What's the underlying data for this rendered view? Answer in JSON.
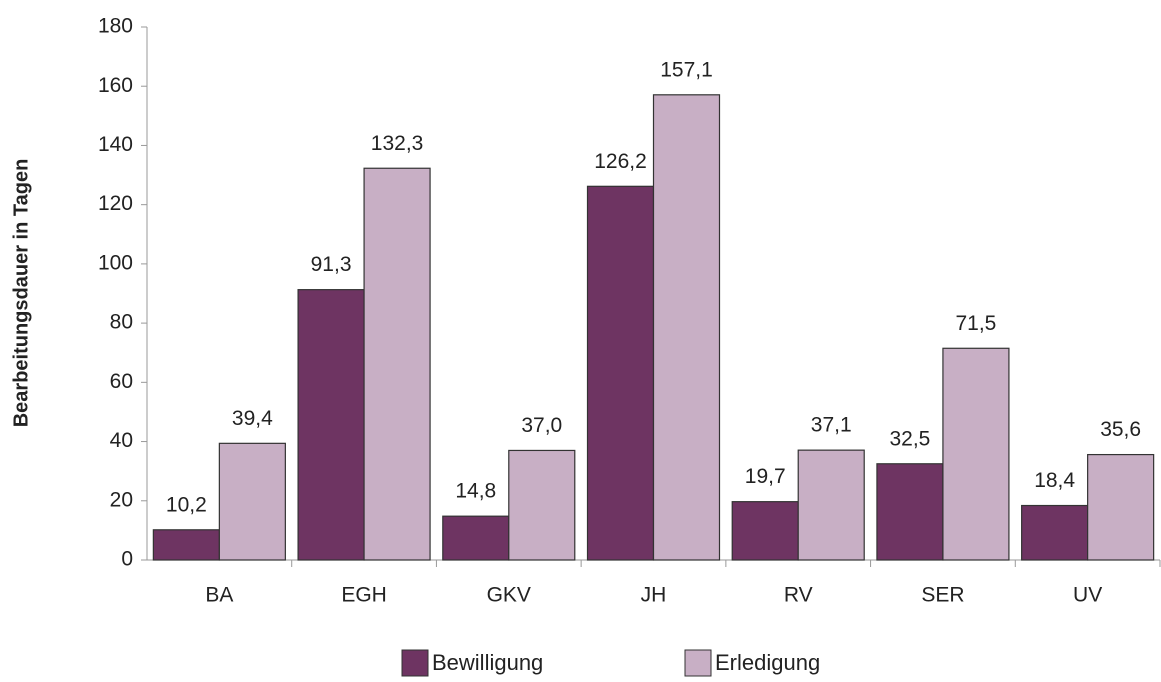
{
  "chart_data": {
    "type": "bar",
    "y_label": "Bearbeitungsdauer in Tagen",
    "categories": [
      "BA",
      "EGH",
      "GKV",
      "JH",
      "RV",
      "SER",
      "UV"
    ],
    "series": [
      {
        "name": "Bewilligung",
        "color": "#6e3462",
        "values": [
          10.2,
          91.3,
          14.8,
          126.2,
          19.7,
          32.5,
          18.4
        ],
        "value_labels": [
          "10,2",
          "91,3",
          "14,8",
          "126,2",
          "19,7",
          "32,5",
          "18,4"
        ]
      },
      {
        "name": "Erledigung",
        "color": "#c8afc5",
        "values": [
          39.4,
          132.3,
          37.0,
          157.1,
          37.1,
          71.5,
          35.6
        ],
        "value_labels": [
          "39,4",
          "132,3",
          "37,0",
          "157,1",
          "37,1",
          "71,5",
          "35,6"
        ]
      }
    ],
    "ylim": [
      0,
      180
    ],
    "yticks": [
      0,
      20,
      40,
      60,
      80,
      100,
      120,
      140,
      160,
      180
    ],
    "grid": false,
    "legend": "bottom"
  }
}
